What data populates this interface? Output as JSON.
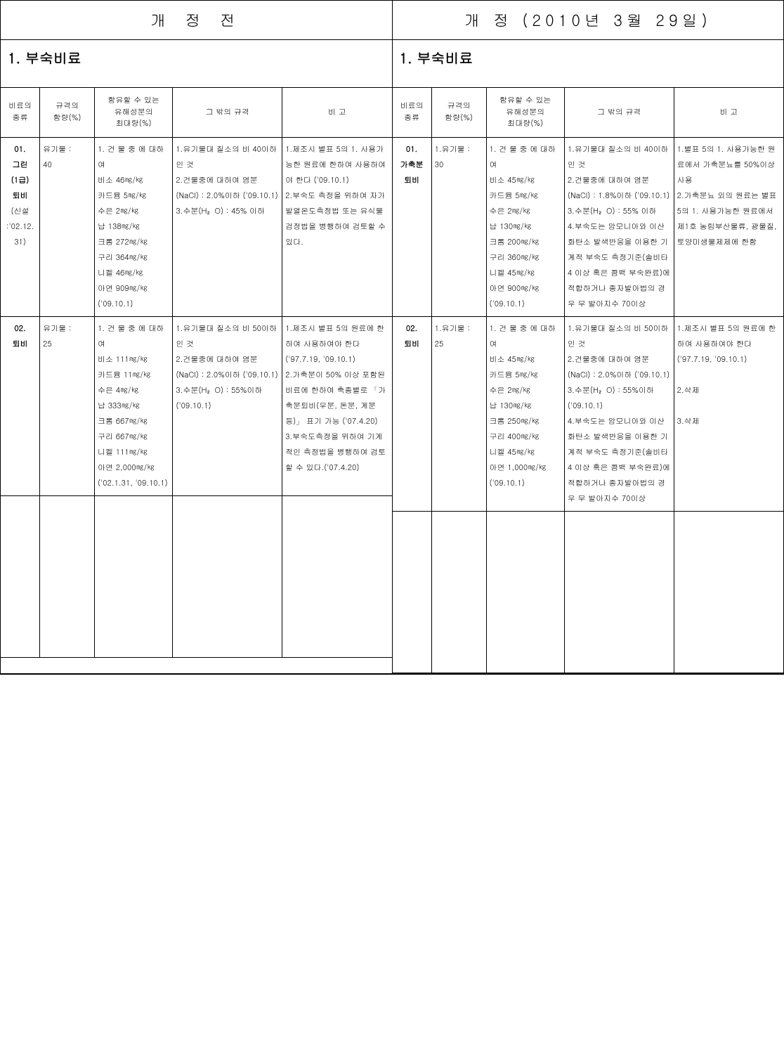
{
  "header": {
    "left": "개   정   전",
    "right": "개   정 (2010년 3월 29일)"
  },
  "section_title": "1. 부숙비료",
  "col_headers": {
    "type": "비료의\n종류",
    "spec": "규격의\n함량(%)",
    "harm": "함유할 수 있는\n유해성분의\n최대량(%)",
    "other": "그 밖의 규격",
    "note": "비   고"
  },
  "left": {
    "row1": {
      "type_line1": "01.",
      "type_line2": "그린",
      "type_line3": "(1급)",
      "type_line4": "퇴비",
      "type_line5": "(신설",
      "type_line6": ":'02.12.",
      "type_line7": "31)",
      "spec": "유기물 :\n40",
      "harm": "1. 건 물 중 에 대하여\n비소 46㎎/㎏\n카드뮴 5㎎/㎏\n수은 2㎎/㎏\n납 138㎎/㎏\n크롬 272㎎/㎏\n구리 364㎎/㎏\n니켈 46㎎/㎏\n아연 909㎎/㎏\n('09.10.1)",
      "other": "1.유기물대 질소의 비 40이하 인 것\n2.건물중에 대하여 염분(NaCl) : 2.0%이하 ('09.10.1)\n3.수분(H₂O) : 45% 이하",
      "note": "1.제조시 별표 5의 1. 사용가능한 원료에 한하여 사용하여야 한다 ('09.10.1)\n2.부숙도 측정을 위하여 자가발열온도측정법 또는 유식물검정법을 병행하여 검토할 수 있다."
    },
    "row2": {
      "type_line1": "02.",
      "type_line2": "퇴비",
      "spec": "유기물 :\n25",
      "harm": "1. 건 물 중 에 대하여\n비소 111㎎/㎏\n카드뮴 11㎎/㎏\n수은 4㎎/㎏\n납 333㎎/㎏\n크롬 667㎎/㎏\n구리 667㎎/㎏\n니켈 111㎎/㎏\n아연 2,000㎎/㎏\n('02.1.31, '09.10.1)",
      "other": "1.유기물대 질소의 비 50이하 인 것\n2.건물중에 대하여 염분(NaCl) : 2.0%이하 ('09.10.1)\n3.수분(H₂O) : 55%이하 ('09.10.1)",
      "note": "1.제조시 별표 5의 원료에 한하여 사용하여야 한다 ('97.7.19, '09.10.1)\n2.가축분이 50% 이상 포함된비료에 한하여 축종별로 「가축분퇴비(우분, 돈분, 계분 등)」 표기 가능 ('07.4.20)\n3.부숙도측정을 위하여 기계적인 측정법을 병행하여 검토할 수 있다.('07.4.20)"
    }
  },
  "right": {
    "row1": {
      "type_line1": "01.",
      "type_line2": "가축분",
      "type_line3": "퇴비",
      "spec": "1.유기물 :\n30",
      "harm": "1. 건 물 중 에 대하여\n비소 45㎎/㎏\n카드뮴 5㎎/㎏\n수은 2㎎/㎏\n납 130㎎/㎏\n크롬 200㎎/㎏\n구리 360㎎/㎏\n니켈 45㎎/㎏\n아연 900㎎/㎏\n('09.10.1)",
      "other": "1.유기물대 질소의 비 40이하 인 것\n2.건물중에 대하여 염분(NaCl) : 1.8%이하 ('09.10.1)\n3.수분(H₂O) : 55% 이하\n4.부숙도는 암모니아와 이산화탄소 발색반응을 이용한 기계적 부숙도 측정기준(솔비타 4 이상 혹은 콤백 부숙완료)에 적합하거나 종자발아법의 경우 무 발아지수 70이상",
      "note": "1.별표 5의 1. 사용가능한 원료에서 가축분뇨를 50%이상 사용\n2.가축분뇨 외의 원료는 별표 5의 1. 사용가능한 원료에서 제1호 농림부산물류, 광물질, 토양미생물제제에 한함"
    },
    "row2": {
      "type_line1": "02.",
      "type_line2": "퇴비",
      "spec": "1.유기물 :\n25",
      "harm": "1. 건 물 중 에 대하여\n비소 45㎎/㎏\n카드뮴 5㎎/㎏\n수은 2㎎/㎏\n납 130㎎/㎏\n크롬 250㎎/㎏\n구리 400㎎/㎏\n니켈 45㎎/㎏\n아연 1,000㎎/㎏\n('09.10.1)",
      "other": "1.유기물대 질소의 비 50이하 인 것\n2.건물중에 대하여 염분(NaCl) : 2.0%이하 ('09.10.1)\n3.수분(H₂O) : 55%이하 ('09.10.1)\n4.부숙도는 암모니아와 이산화탄소 발색반응을 이용한 기계적 부숙도 측정기준(솔비타 4 이상 혹은 콤백 부숙완료)에 적합하거나 종자발아법의 경우 무 발아지수 70이상",
      "note": "1.제조시 별표 5의 원료에 한하여 사용하여야 한다 ('97.7.19, '09.10.1)\n\n2.삭제\n\n3.삭제"
    }
  }
}
